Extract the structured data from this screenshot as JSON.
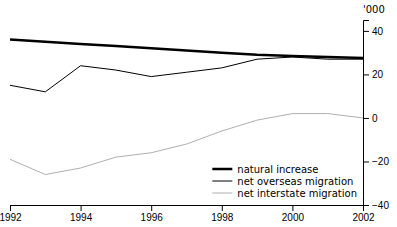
{
  "chart_data": {
    "type": "line",
    "x": [
      1992,
      1993,
      1994,
      1995,
      1996,
      1997,
      1998,
      1999,
      2000,
      2001,
      2002
    ],
    "series": [
      {
        "name": "natural increase",
        "color": "#000000",
        "values": [
          36,
          35,
          34,
          33,
          32,
          31,
          30,
          29,
          28.5,
          28,
          27.5
        ]
      },
      {
        "name": "net overseas migration",
        "color": "#000000",
        "values": [
          15,
          12,
          24,
          22,
          19,
          21,
          23,
          27,
          28,
          27,
          27
        ]
      },
      {
        "name": "net interstate migration",
        "color": "#b0b0b0",
        "values": [
          -19,
          -26,
          -23,
          -18,
          -16,
          -12,
          -6,
          -1,
          2,
          2,
          0
        ]
      }
    ],
    "xlim": [
      1992,
      2002
    ],
    "xticks": [
      1992,
      1994,
      1996,
      1998,
      2000,
      2002
    ],
    "ylim": [
      -40,
      45
    ],
    "yticks": [
      {
        "value": -40,
        "label": "−40"
      },
      {
        "value": -20,
        "label": "−20"
      },
      0,
      20,
      40
    ],
    "y_label": "'000",
    "legend": "lower right",
    "grid": false
  }
}
